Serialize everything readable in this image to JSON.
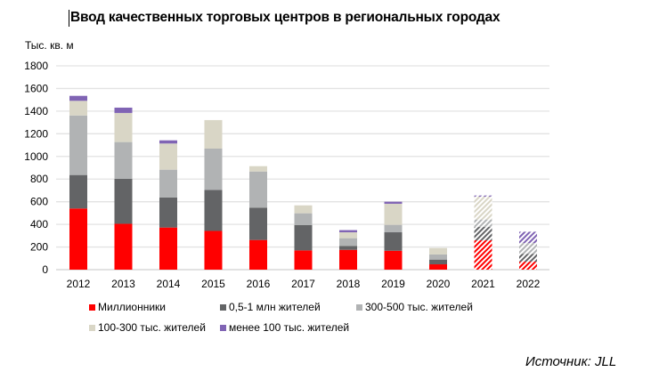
{
  "title": "Ввод качественных торговых центров в региональных городах",
  "source": "Источник: JLL",
  "chart_data": {
    "type": "bar",
    "stacked": true,
    "title": "Ввод качественных торговых центров в региональных городах",
    "ylabel": "Тыс. кв. м",
    "xlabel": "",
    "ylim": [
      0,
      1800
    ],
    "yticks": [
      0,
      200,
      400,
      600,
      800,
      1000,
      1200,
      1400,
      1600,
      1800
    ],
    "grid": true,
    "legend_position": "bottom",
    "categories": [
      "2012",
      "2013",
      "2014",
      "2015",
      "2016",
      "2017",
      "2018",
      "2019",
      "2020",
      "2021",
      "2022"
    ],
    "forecast_categories": [
      "2021",
      "2022"
    ],
    "series": [
      {
        "name": "Миллионники",
        "color": "#ff0000",
        "values": [
          540,
          405,
          372,
          342,
          262,
          170,
          175,
          167,
          47,
          259,
          70
        ]
      },
      {
        "name": "0,5-1 млн жителей",
        "color": "#636466",
        "values": [
          296,
          397,
          265,
          363,
          286,
          223,
          35,
          163,
          42,
          118,
          70
        ]
      },
      {
        "name": "300-500 тыс. жителей",
        "color": "#b1b3b4",
        "values": [
          526,
          325,
          246,
          364,
          319,
          105,
          68,
          66,
          45,
          66,
          95
        ]
      },
      {
        "name": "100-300 тыс. жителей",
        "color": "#d9d6c6",
        "values": [
          129,
          257,
          231,
          252,
          47,
          70,
          52,
          186,
          57,
          202,
          0
        ]
      },
      {
        "name": "менее 100 тыс. жителей",
        "color": "#8064b4",
        "values": [
          44,
          47,
          28,
          0,
          0,
          0,
          19,
          18,
          0,
          10,
          100
        ]
      }
    ]
  }
}
